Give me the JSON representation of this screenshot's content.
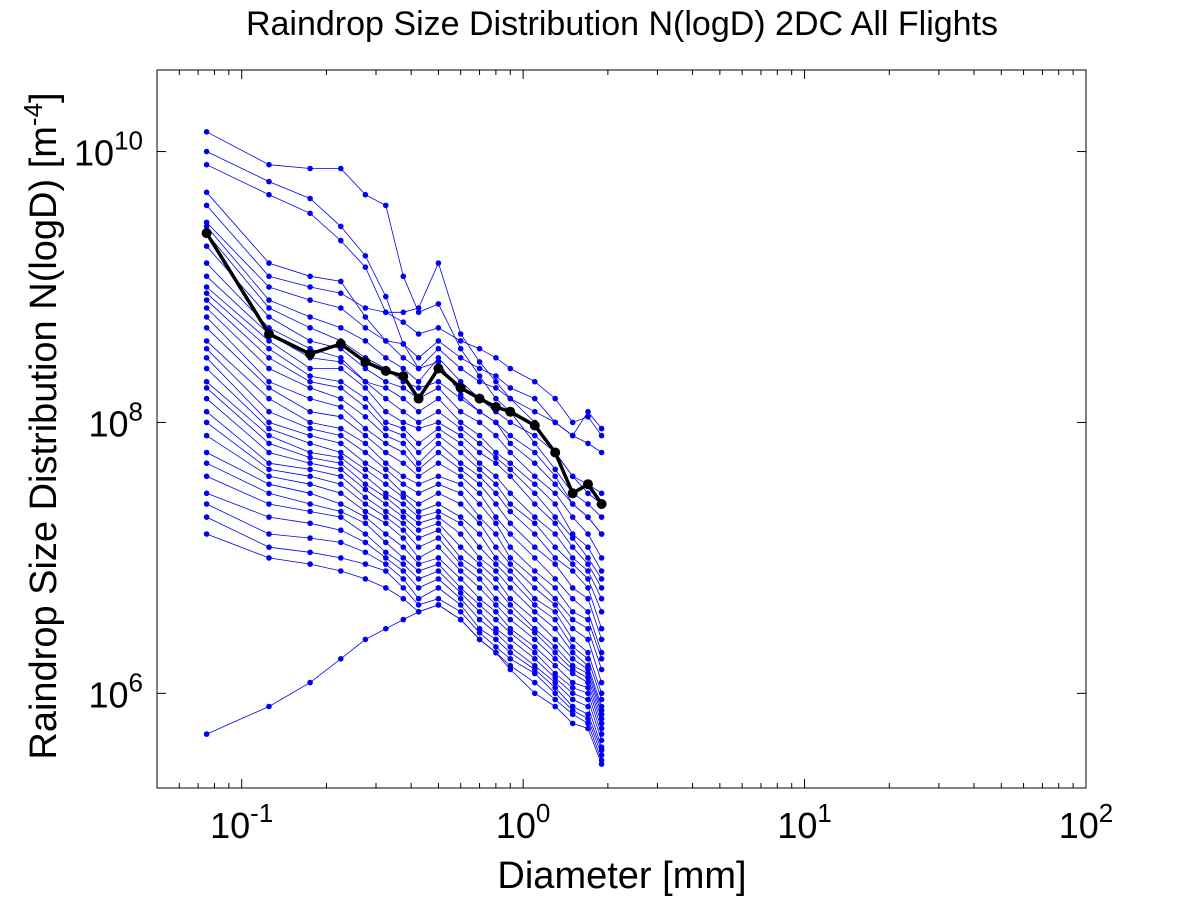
{
  "chart_data": {
    "type": "line",
    "title": "Raindrop Size Distribution N(logD) 2DC All Flights",
    "xlabel": "Diameter [mm]",
    "ylabel_main": "Raindrop Size Distribution N(logD) [m",
    "ylabel_exponent": "-4",
    "ylabel_suffix": "]",
    "xscale": "log",
    "yscale": "log",
    "xlim": [
      0.05,
      100
    ],
    "ylim": [
      200000,
      40000000000
    ],
    "grid": false,
    "x_ticks": [
      {
        "base": "10",
        "exp": "-1",
        "value": 0.1
      },
      {
        "base": "10",
        "exp": "0",
        "value": 1
      },
      {
        "base": "10",
        "exp": "1",
        "value": 10
      },
      {
        "base": "10",
        "exp": "2",
        "value": 100
      }
    ],
    "y_ticks": [
      {
        "base": "10",
        "exp": "6",
        "value": 1000000
      },
      {
        "base": "10",
        "exp": "8",
        "value": 100000000
      },
      {
        "base": "10",
        "exp": "10",
        "value": 10000000000
      }
    ],
    "x": [
      0.075,
      0.125,
      0.175,
      0.225,
      0.275,
      0.325,
      0.375,
      0.425,
      0.5,
      0.6,
      0.7,
      0.8,
      0.9,
      1.1,
      1.3,
      1.5,
      1.7,
      1.9
    ],
    "mean_series": {
      "color": "#000000",
      "values": [
        2500000000,
        450000000,
        320000000,
        380000000,
        280000000,
        240000000,
        220000000,
        150000000,
        250000000,
        180000000,
        150000000,
        130000000,
        120000000,
        95000000,
        60000000,
        30000000,
        35000000,
        25000000
      ]
    },
    "flight_series_color": "#0000ee",
    "flight_series": [
      [
        14000000000,
        8000000000,
        7500000000,
        7500000000,
        4800000000,
        4000000000,
        1200000000,
        650000000,
        750000000,
        350000000,
        220000000,
        150000000,
        120000000,
        70000000,
        45000000,
        30000000,
        25000000,
        20000000
      ],
      [
        10000000000,
        6000000000,
        4500000000,
        2800000000,
        1700000000,
        850000000,
        380000000,
        250000000,
        280000000,
        160000000,
        120000000,
        100000000,
        70000000,
        50000000,
        35000000,
        25000000,
        20000000,
        15000000
      ],
      [
        8000000000,
        4800000000,
        3500000000,
        2200000000,
        1400000000,
        650000000,
        650000000,
        700000000,
        1500000000,
        450000000,
        280000000,
        200000000,
        150000000,
        100000000,
        60000000,
        40000000,
        30000000,
        25000000
      ],
      [
        5000000000,
        1500000000,
        1200000000,
        1100000000,
        600000000,
        400000000,
        300000000,
        250000000,
        350000000,
        250000000,
        200000000,
        180000000,
        150000000,
        120000000,
        100000000,
        80000000,
        120000000,
        90000000
      ],
      [
        4000000000,
        1200000000,
        1000000000,
        900000000,
        700000000,
        650000000,
        550000000,
        450000000,
        500000000,
        400000000,
        350000000,
        300000000,
        250000000,
        200000000,
        150000000,
        100000000,
        110000000,
        80000000
      ],
      [
        3000000000,
        1000000000,
        800000000,
        700000000,
        500000000,
        400000000,
        380000000,
        300000000,
        400000000,
        300000000,
        250000000,
        220000000,
        180000000,
        150000000,
        100000000,
        80000000,
        70000000,
        60000000
      ],
      [
        2800000000,
        800000000,
        600000000,
        500000000,
        400000000,
        300000000,
        250000000,
        200000000,
        300000000,
        200000000,
        150000000,
        120000000,
        100000000,
        80000000,
        60000000,
        40000000,
        35000000,
        30000000
      ],
      [
        2500000000,
        700000000,
        500000000,
        400000000,
        300000000,
        250000000,
        200000000,
        180000000,
        200000000,
        150000000,
        120000000,
        100000000,
        80000000,
        60000000,
        40000000,
        25000000,
        20000000,
        15000000
      ],
      [
        2000000000,
        600000000,
        400000000,
        350000000,
        250000000,
        200000000,
        180000000,
        150000000,
        180000000,
        120000000,
        100000000,
        80000000,
        60000000,
        40000000,
        30000000,
        20000000,
        15000000,
        10000000
      ],
      [
        1500000000,
        500000000,
        350000000,
        300000000,
        200000000,
        180000000,
        150000000,
        120000000,
        150000000,
        100000000,
        80000000,
        60000000,
        50000000,
        35000000,
        25000000,
        15000000,
        12000000,
        8000000
      ],
      [
        1200000000,
        450000000,
        300000000,
        280000000,
        200000000,
        150000000,
        120000000,
        100000000,
        120000000,
        90000000,
        70000000,
        55000000,
        45000000,
        30000000,
        20000000,
        14000000,
        10000000,
        7000000
      ],
      [
        1000000000,
        400000000,
        250000000,
        250000000,
        180000000,
        120000000,
        100000000,
        90000000,
        100000000,
        80000000,
        60000000,
        50000000,
        40000000,
        25000000,
        18000000,
        12000000,
        9000000,
        6000000
      ],
      [
        900000000,
        350000000,
        220000000,
        200000000,
        150000000,
        100000000,
        90000000,
        70000000,
        90000000,
        70000000,
        50000000,
        40000000,
        30000000,
        20000000,
        15000000,
        10000000,
        8000000,
        5000000
      ],
      [
        800000000,
        300000000,
        200000000,
        180000000,
        130000000,
        90000000,
        80000000,
        60000000,
        80000000,
        60000000,
        45000000,
        35000000,
        25000000,
        18000000,
        12000000,
        9000000,
        7000000,
        4000000
      ],
      [
        700000000,
        250000000,
        180000000,
        150000000,
        110000000,
        80000000,
        70000000,
        50000000,
        70000000,
        50000000,
        40000000,
        30000000,
        22000000,
        15000000,
        10000000,
        8000000,
        6000000,
        3000000
      ],
      [
        600000000,
        200000000,
        150000000,
        130000000,
        90000000,
        70000000,
        60000000,
        45000000,
        60000000,
        45000000,
        35000000,
        25000000,
        18000000,
        12000000,
        9000000,
        6000000,
        5000000,
        2500000
      ],
      [
        500000000,
        180000000,
        120000000,
        110000000,
        80000000,
        60000000,
        50000000,
        40000000,
        50000000,
        40000000,
        30000000,
        20000000,
        15000000,
        10000000,
        7000000,
        5000000,
        4000000,
        2000000
      ],
      [
        400000000,
        150000000,
        100000000,
        90000000,
        70000000,
        50000000,
        40000000,
        35000000,
        40000000,
        35000000,
        25000000,
        18000000,
        12000000,
        8000000,
        6000000,
        4000000,
        3500000,
        1800000
      ],
      [
        350000000,
        120000000,
        90000000,
        80000000,
        60000000,
        45000000,
        35000000,
        30000000,
        35000000,
        30000000,
        20000000,
        15000000,
        10000000,
        7000000,
        5000000,
        3500000,
        3000000,
        1500000
      ],
      [
        300000000,
        100000000,
        80000000,
        70000000,
        50000000,
        40000000,
        30000000,
        25000000,
        30000000,
        25000000,
        18000000,
        12000000,
        9000000,
        6000000,
        4500000,
        3000000,
        2500000,
        1200000
      ],
      [
        250000000,
        90000000,
        70000000,
        60000000,
        45000000,
        35000000,
        28000000,
        22000000,
        25000000,
        20000000,
        15000000,
        10000000,
        8000000,
        5000000,
        4000000,
        2500000,
        2000000,
        1000000
      ],
      [
        200000000,
        80000000,
        60000000,
        55000000,
        40000000,
        30000000,
        25000000,
        20000000,
        22000000,
        18000000,
        12000000,
        9000000,
        7000000,
        4500000,
        3500000,
        2200000,
        1800000,
        900000
      ],
      [
        180000000,
        70000000,
        55000000,
        50000000,
        35000000,
        28000000,
        22000000,
        18000000,
        20000000,
        15000000,
        10000000,
        8000000,
        6000000,
        4000000,
        3000000,
        2000000,
        1600000,
        800000
      ],
      [
        150000000,
        60000000,
        50000000,
        45000000,
        32000000,
        25000000,
        20000000,
        16000000,
        18000000,
        12000000,
        9000000,
        7000000,
        5000000,
        3500000,
        2500000,
        1800000,
        1500000,
        750000
      ],
      [
        120000000,
        50000000,
        45000000,
        40000000,
        28000000,
        22000000,
        18000000,
        14000000,
        16000000,
        10000000,
        8000000,
        6000000,
        4500000,
        3000000,
        2200000,
        1600000,
        1400000,
        700000
      ],
      [
        100000000,
        45000000,
        40000000,
        35000000,
        25000000,
        20000000,
        16000000,
        12000000,
        14000000,
        9000000,
        7000000,
        5000000,
        4000000,
        2800000,
        2000000,
        1500000,
        1300000,
        650000
      ],
      [
        80000000,
        40000000,
        35000000,
        30000000,
        22000000,
        18000000,
        14000000,
        10000000,
        12000000,
        8000000,
        6000000,
        4500000,
        3500000,
        2500000,
        1800000,
        1400000,
        1200000,
        600000
      ],
      [
        60000000,
        35000000,
        30000000,
        25000000,
        20000000,
        15000000,
        12000000,
        9000000,
        10000000,
        7000000,
        5000000,
        4000000,
        3000000,
        2200000,
        1600000,
        1200000,
        1100000,
        550000
      ],
      [
        50000000,
        30000000,
        25000000,
        22000000,
        18000000,
        13000000,
        10000000,
        8000000,
        9000000,
        6000000,
        4500000,
        3500000,
        2800000,
        2000000,
        1400000,
        1100000,
        1000000,
        500000
      ],
      [
        40000000,
        25000000,
        22000000,
        20000000,
        15000000,
        11000000,
        9000000,
        7000000,
        8000000,
        5500000,
        4000000,
        3000000,
        2500000,
        1800000,
        1300000,
        1000000,
        900000,
        450000
      ],
      [
        30000000,
        20000000,
        18000000,
        16000000,
        13000000,
        10000000,
        8000000,
        6000000,
        7000000,
        5000000,
        3500000,
        2800000,
        2200000,
        1600000,
        1200000,
        900000,
        800000,
        400000
      ],
      [
        25000000,
        15000000,
        14000000,
        13000000,
        11000000,
        9000000,
        7000000,
        5000000,
        6000000,
        4500000,
        3000000,
        2500000,
        2000000,
        1500000,
        1100000,
        800000,
        700000,
        380000
      ],
      [
        20000000,
        12000000,
        11000000,
        10000000,
        9000000,
        8000000,
        6000000,
        4500000,
        5000000,
        4000000,
        2800000,
        2200000,
        1800000,
        1400000,
        1000000,
        750000,
        650000,
        350000
      ],
      [
        15000000,
        10000000,
        9000000,
        8000000,
        7000000,
        6000000,
        5000000,
        4000000,
        4500000,
        3500000,
        2500000,
        2000000,
        1600000,
        1200000,
        900000,
        700000,
        600000,
        320000
      ],
      [
        500000,
        800000,
        1200000,
        1800000,
        2500000,
        3000000,
        3500000,
        4000000,
        4500000,
        3500000,
        2500000,
        2000000,
        1500000,
        1000000,
        800000,
        600000,
        550000,
        300000
      ]
    ]
  }
}
